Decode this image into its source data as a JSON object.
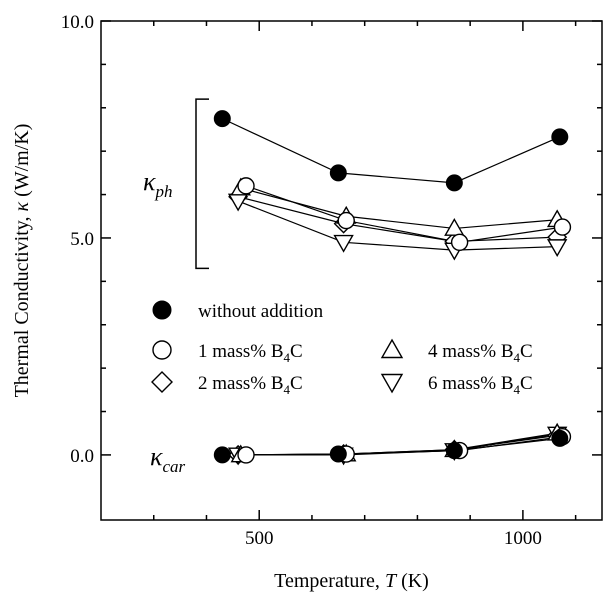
{
  "chart_data": {
    "type": "line",
    "xlabel": "Temperature, T (K)",
    "ylabel": "Thermal Conductivity, κ (W/m/K)",
    "xlabel_parts": {
      "prefix": "Temperature, ",
      "var": "T",
      "suffix": " (K)"
    },
    "ylabel_parts": {
      "prefix": "Thermal Conductivity, ",
      "var": "κ",
      "suffix": " (W/m/K)"
    },
    "xlim": [
      200,
      1150
    ],
    "ylim": [
      -1.5,
      10.0
    ],
    "x_major_ticks": [
      500,
      1000
    ],
    "x_minor_ticks": [
      300,
      400,
      600,
      700,
      800,
      900,
      1100
    ],
    "y_major_ticks": [
      0.0,
      5.0,
      10.0
    ],
    "y_minor_ticks": [
      1,
      2,
      3,
      4,
      6,
      7,
      8,
      9
    ],
    "x_tick_labels": [
      "500",
      "1000"
    ],
    "y_tick_labels": [
      "0.0",
      "5.0",
      "10.0"
    ],
    "grid": false,
    "legend_placement": "center-left",
    "annotations": {
      "kappa_ph": {
        "symbol": "κ",
        "sub": "ph"
      },
      "kappa_car": {
        "symbol": "κ",
        "sub": "car"
      }
    },
    "bracket_range": [
      4.3,
      8.2
    ],
    "series": [
      {
        "name": "without addition",
        "marker": "filled-circle",
        "label": {
          "text": "without addition"
        },
        "phonon": {
          "x": [
            430,
            650,
            870,
            1070
          ],
          "y": [
            7.75,
            6.5,
            6.27,
            7.33
          ]
        },
        "carrier": {
          "x": [
            430,
            650,
            870,
            1070
          ],
          "y": [
            0.0,
            0.02,
            0.1,
            0.38
          ]
        }
      },
      {
        "name": "1 mass% B4C",
        "marker": "open-circle",
        "label": {
          "text": "1 mass% B",
          "sub": "4",
          "suffix": "C"
        },
        "phonon": {
          "x": [
            475,
            665,
            880,
            1075
          ],
          "y": [
            6.2,
            5.4,
            4.9,
            5.25
          ]
        },
        "carrier": {
          "x": [
            475,
            665,
            880,
            1075
          ],
          "y": [
            0.0,
            0.02,
            0.1,
            0.42
          ]
        }
      },
      {
        "name": "2 mass% B4C",
        "marker": "open-diamond",
        "label": {
          "text": "2 mass% B",
          "sub": "4",
          "suffix": "C"
        },
        "phonon": {
          "x": [
            460,
            660,
            870,
            1065
          ],
          "y": [
            5.95,
            5.33,
            4.92,
            5.02
          ]
        },
        "carrier": {
          "x": [
            460,
            660,
            870,
            1065
          ],
          "y": [
            0.0,
            0.02,
            0.12,
            0.45
          ]
        }
      },
      {
        "name": "4 mass% B4C",
        "marker": "open-triangle-up",
        "label": {
          "text": "4 mass% B",
          "sub": "4",
          "suffix": "C"
        },
        "phonon": {
          "x": [
            465,
            665,
            870,
            1065
          ],
          "y": [
            6.15,
            5.5,
            5.22,
            5.42
          ]
        },
        "carrier": {
          "x": [
            465,
            665,
            870,
            1065
          ],
          "y": [
            0.0,
            0.02,
            0.12,
            0.5
          ]
        }
      },
      {
        "name": "6 mass% B4C",
        "marker": "open-triangle-down",
        "label": {
          "text": "6 mass% B",
          "sub": "4",
          "suffix": "C"
        },
        "phonon": {
          "x": [
            460,
            660,
            870,
            1065
          ],
          "y": [
            5.85,
            4.9,
            4.72,
            4.8
          ]
        },
        "carrier": {
          "x": [
            460,
            660,
            870,
            1065
          ],
          "y": [
            0.0,
            0.0,
            0.1,
            0.48
          ]
        }
      }
    ]
  }
}
